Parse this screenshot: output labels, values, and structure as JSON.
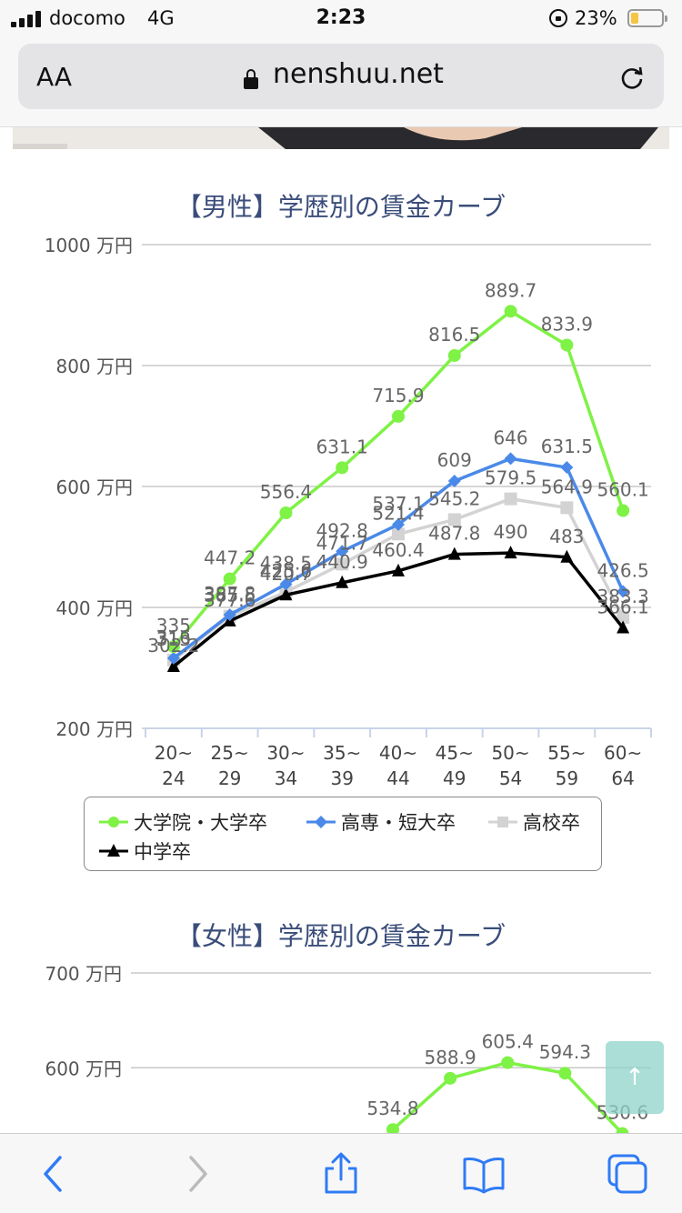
{
  "status_bar": {
    "carrier": "docomo",
    "network": "4G",
    "time": "2:23",
    "battery": "23%"
  },
  "browser": {
    "aa_label": "AA",
    "url": "nenshuu.net"
  },
  "charts": {
    "male": {
      "title": "【男性】学歴別の賃金カーブ"
    },
    "female": {
      "title": "【女性】学歴別の賃金カーブ"
    }
  },
  "legend": [
    {
      "label": "大学院・大学卒",
      "color": "#7ef245",
      "marker": "circle"
    },
    {
      "label": "高専・短大卒",
      "color": "#4a89e8",
      "marker": "diamond"
    },
    {
      "label": "高校卒",
      "color": "#d3d3d3",
      "marker": "square"
    },
    {
      "label": "中学卒",
      "color": "#000000",
      "marker": "triangle"
    }
  ],
  "scroll_top_label": "↑",
  "chart_data": [
    {
      "type": "line",
      "title": "【男性】学歴別の賃金カーブ",
      "unit": "万円",
      "categories": [
        [
          "20~",
          "24"
        ],
        [
          "25~",
          "29"
        ],
        [
          "30~",
          "34"
        ],
        [
          "35~",
          "39"
        ],
        [
          "40~",
          "44"
        ],
        [
          "45~",
          "49"
        ],
        [
          "50~",
          "54"
        ],
        [
          "55~",
          "59"
        ],
        [
          "60~",
          "64"
        ]
      ],
      "ylim": [
        200,
        1000
      ],
      "yticks": [
        200,
        400,
        600,
        800,
        1000
      ],
      "grid": true,
      "legend_position": "bottom",
      "series": [
        {
          "name": "大学院・大学卒",
          "color": "#7ef245",
          "marker": "circle",
          "values": [
            335,
            447.2,
            556.4,
            631.1,
            715.9,
            816.5,
            889.7,
            833.9,
            560.1
          ]
        },
        {
          "name": "高専・短大卒",
          "color": "#4a89e8",
          "marker": "diamond",
          "values": [
            316,
            387.8,
            438.5,
            492.8,
            537.1,
            609,
            646,
            631.5,
            426.5
          ]
        },
        {
          "name": "高校卒",
          "color": "#d3d3d3",
          "marker": "square",
          "values": [
            313,
            385.5,
            425.6,
            471.7,
            521.4,
            545.2,
            579.5,
            564.9,
            383.3
          ]
        },
        {
          "name": "中学卒",
          "color": "#000000",
          "marker": "triangle",
          "values": [
            302.2,
            377.6,
            420.7,
            440.9,
            460.4,
            487.8,
            490,
            483,
            366.1
          ]
        }
      ]
    },
    {
      "type": "line",
      "title": "【女性】学歴別の賃金カーブ",
      "unit": "万円",
      "ylim": [
        300,
        700
      ],
      "yticks": [
        600,
        700
      ],
      "grid": true,
      "series": [
        {
          "name": "大学院・大学卒",
          "color": "#7ef245",
          "marker": "circle",
          "values": [
            null,
            null,
            null,
            null,
            534.8,
            588.9,
            605.4,
            594.3,
            530.6
          ]
        }
      ]
    }
  ]
}
